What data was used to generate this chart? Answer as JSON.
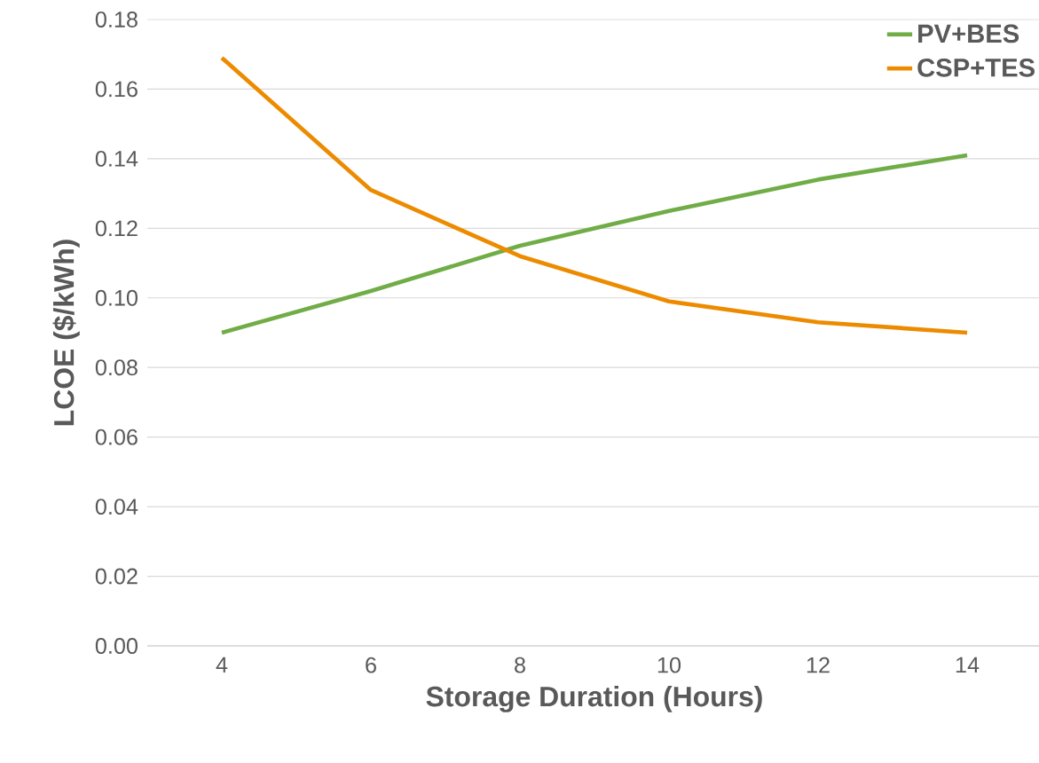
{
  "chart_data": {
    "type": "line",
    "xlabel": "Storage Duration (Hours)",
    "ylabel": "LCOE ($/kWh)",
    "categories": [
      "4",
      "6",
      "8",
      "10",
      "12",
      "14"
    ],
    "series": [
      {
        "name": "PV+BES",
        "color": "#70ad47",
        "values": [
          0.09,
          0.102,
          0.115,
          0.125,
          0.134,
          0.141
        ]
      },
      {
        "name": "CSP+TES",
        "color": "#ed8b00",
        "values": [
          0.169,
          0.131,
          0.112,
          0.099,
          0.093,
          0.09
        ]
      }
    ],
    "ylim": [
      0,
      0.18
    ],
    "yticks": [
      {
        "value": 0,
        "label": "0.00"
      },
      {
        "value": 0.02,
        "label": "0.02"
      },
      {
        "value": 0.04,
        "label": "0.04"
      },
      {
        "value": 0.06,
        "label": "0.06"
      },
      {
        "value": 0.08,
        "label": "0.08"
      },
      {
        "value": 0.1,
        "label": "0.10"
      },
      {
        "value": 0.12,
        "label": "0.12"
      },
      {
        "value": 0.14,
        "label": "0.14"
      },
      {
        "value": 0.16,
        "label": "0.16"
      },
      {
        "value": 0.18,
        "label": "0.18"
      }
    ],
    "grid": "y",
    "legend": "top right",
    "marker": "none",
    "line_style": "solid"
  }
}
